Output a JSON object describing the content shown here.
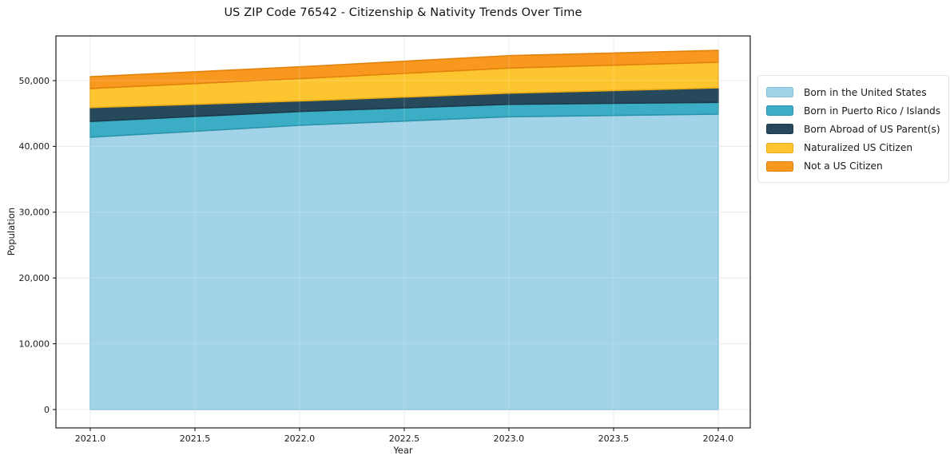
{
  "title": "US ZIP Code 76542 - Citizenship & Nativity Trends Over Time",
  "chart_data": {
    "type": "area",
    "stacked": true,
    "title": "US ZIP Code 76542 - Citizenship & Nativity Trends Over Time",
    "xlabel": "Year",
    "ylabel": "Population",
    "x": [
      2021,
      2022,
      2023,
      2024
    ],
    "series": [
      {
        "name": "Born in the United States",
        "values": [
          41400,
          43200,
          44500,
          44900
        ],
        "color": "#a3d3e8",
        "edge_color": "#82bedb"
      },
      {
        "name": "Born in Puerto Rico / Islands",
        "values": [
          2400,
          2100,
          1900,
          1800
        ],
        "color": "#3badc4",
        "edge_color": "#2b94aa"
      },
      {
        "name": "Born Abroad of US Parent(s)",
        "values": [
          2100,
          1600,
          1700,
          2200
        ],
        "color": "#26495c",
        "edge_color": "#1c3a49"
      },
      {
        "name": "Naturalized US Citizen",
        "values": [
          2900,
          3400,
          3800,
          3900
        ],
        "color": "#fdc52f",
        "edge_color": "#eaaa15"
      },
      {
        "name": "Not a US Citizen",
        "values": [
          1800,
          1800,
          1900,
          1800
        ],
        "color": "#f8981f",
        "edge_color": "#e2820c"
      }
    ],
    "stack_totals": [
      50600,
      52100,
      53800,
      54600
    ],
    "x_ticks": [
      2021.0,
      2021.5,
      2022.0,
      2022.5,
      2023.0,
      2023.5,
      2024.0
    ],
    "x_tick_labels": [
      "2021.0",
      "2021.5",
      "2022.0",
      "2022.5",
      "2023.0",
      "2023.5",
      "2024.0"
    ],
    "y_ticks": [
      0,
      10000,
      20000,
      30000,
      40000,
      50000
    ],
    "y_tick_labels": [
      "0",
      "10,000",
      "20,000",
      "30,000",
      "40,000",
      "50,000"
    ],
    "xlim": [
      2020.836,
      2024.153
    ],
    "ylim": [
      -2791,
      56796
    ],
    "grid": true,
    "legend_position": "center right"
  },
  "colors": {
    "grid": "#e6e6e6",
    "grid_over_area": "rgba(255,255,255,0.20)",
    "spine": "#1b1b1b",
    "tick_text": "#1a1a1a",
    "background": "#ffffff"
  }
}
